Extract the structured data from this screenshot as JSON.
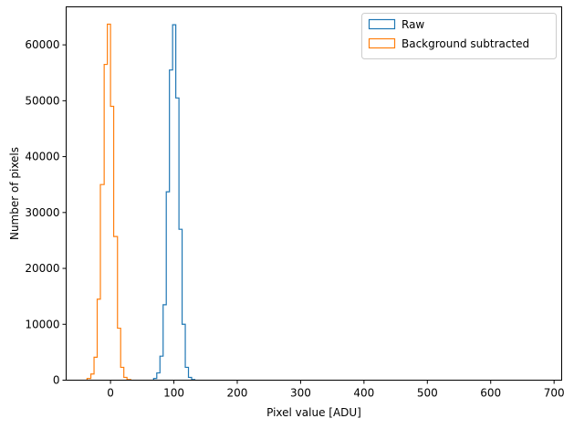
{
  "chart_data": {
    "type": "histogram",
    "xlabel": "Pixel value [ADU]",
    "ylabel": "Number of pixels",
    "xlim": [
      -70,
      712
    ],
    "ylim": [
      0,
      66800
    ],
    "xticks": [
      0,
      100,
      200,
      300,
      400,
      500,
      600,
      700
    ],
    "yticks": [
      0,
      10000,
      20000,
      30000,
      40000,
      50000,
      60000
    ],
    "grid": false,
    "legend_position": "top-right",
    "series": [
      {
        "name": "Raw",
        "color": "#1f77b4",
        "bin_edges": [
          68,
          73,
          78,
          83,
          88,
          93,
          98,
          103,
          108,
          113,
          118,
          123,
          128,
          133
        ],
        "counts": [
          300,
          1300,
          4300,
          13500,
          33700,
          55500,
          63600,
          50500,
          27000,
          10000,
          2300,
          500,
          100
        ]
      },
      {
        "name": "Background subtracted",
        "color": "#ff7f0e",
        "bin_edges": [
          -37,
          -31,
          -26,
          -21,
          -16,
          -10,
          -5,
          0,
          5,
          11,
          16,
          21,
          26,
          32
        ],
        "counts": [
          300,
          1100,
          4100,
          14500,
          35000,
          56500,
          63700,
          49000,
          25700,
          9300,
          2300,
          500,
          100
        ]
      }
    ]
  }
}
